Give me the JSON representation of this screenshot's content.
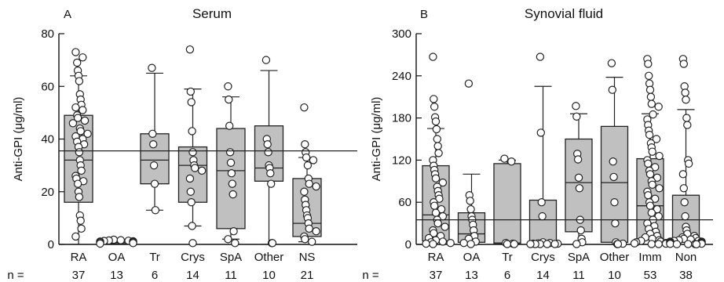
{
  "chart_data": [
    {
      "type": "box",
      "panel": "A",
      "title": "Serum",
      "ylabel": "Anti-GPI (μg/ml)",
      "ylim": [
        0,
        80
      ],
      "yticks": [
        0,
        20,
        40,
        60,
        80
      ],
      "reference_line": 35.5,
      "n_prefix": "n =",
      "groups": [
        {
          "label": "RA",
          "n": "37",
          "box": {
            "whisker_low": 0,
            "q1": 16,
            "median": 32,
            "q3": 49,
            "whisker_high": 64
          },
          "points": [
            73,
            71,
            69,
            66,
            64,
            62,
            57,
            55,
            53,
            52,
            51,
            49,
            48,
            47,
            46,
            44,
            43,
            42,
            41,
            40,
            39,
            38,
            37,
            35,
            32,
            30,
            28,
            26,
            25,
            24,
            23,
            20,
            18,
            11,
            9,
            6,
            3
          ]
        },
        {
          "label": "OA",
          "n": "13",
          "box": {
            "whisker_low": 0,
            "q1": 0.3,
            "median": 0.8,
            "q3": 1.5,
            "whisker_high": 1.8
          },
          "points": [
            1.8,
            1.6,
            1.5,
            1.4,
            1.3,
            1.2,
            1.1,
            1.0,
            0.9,
            0.8,
            0.7,
            0.5,
            0.3
          ]
        },
        {
          "label": "Tr",
          "n": "6",
          "box": {
            "whisker_low": 13,
            "q1": 23,
            "median": 32,
            "q3": 42,
            "whisker_high": 65
          },
          "points": [
            67,
            42,
            38,
            30,
            23,
            13
          ]
        },
        {
          "label": "Crys",
          "n": "14",
          "box": {
            "whisker_low": 7,
            "q1": 16,
            "median": 30,
            "q3": 37,
            "whisker_high": 59
          },
          "points": [
            74,
            58,
            54,
            43,
            35,
            32,
            30,
            29,
            28,
            25,
            20,
            16,
            7,
            0.5
          ]
        },
        {
          "label": "SpA",
          "n": "11",
          "box": {
            "whisker_low": 2,
            "q1": 6,
            "median": 28,
            "q3": 44,
            "whisker_high": 56
          },
          "points": [
            60,
            55,
            45,
            35,
            31,
            27,
            23,
            19,
            5,
            2,
            0.5
          ]
        },
        {
          "label": "Other",
          "n": "10",
          "box": {
            "whisker_low": 0,
            "q1": 24,
            "median": 29,
            "q3": 45,
            "whisker_high": 66
          },
          "points": [
            70,
            40,
            38,
            35,
            30,
            29,
            27,
            23,
            0.5,
            0.5
          ]
        },
        {
          "label": "NS",
          "n": "21",
          "box": {
            "whisker_low": 1,
            "q1": 3,
            "median": 8,
            "q3": 25,
            "whisker_high": 33
          },
          "points": [
            52,
            38,
            35,
            33,
            32,
            30,
            25,
            23,
            22,
            20,
            17,
            15,
            13,
            11,
            10,
            8,
            6,
            5,
            3,
            2,
            1
          ]
        }
      ]
    },
    {
      "type": "box",
      "panel": "B",
      "title": "Synovial fluid",
      "ylabel": "Anti-GPI (μg/ml)",
      "ylim": [
        0,
        300
      ],
      "yticks": [
        0,
        60,
        120,
        180,
        240,
        300
      ],
      "reference_line": 35,
      "n_prefix": "n =",
      "groups": [
        {
          "label": "RA",
          "n": "37",
          "box": {
            "whisker_low": 0,
            "q1": 5,
            "median": 42,
            "q3": 112,
            "whisker_high": 165
          },
          "points": [
            267,
            207,
            196,
            181,
            175,
            164,
            150,
            140,
            130,
            120,
            112,
            106,
            100,
            94,
            88,
            82,
            76,
            70,
            65,
            60,
            55,
            50,
            45,
            40,
            35,
            30,
            25,
            20,
            16,
            12,
            9,
            6,
            4,
            3,
            2,
            1,
            0.5
          ]
        },
        {
          "label": "OA",
          "n": "13",
          "box": {
            "whisker_low": 0,
            "q1": 3,
            "median": 15,
            "q3": 45,
            "whisker_high": 100
          },
          "points": [
            229,
            70,
            62,
            50,
            40,
            35,
            28,
            20,
            12,
            8,
            4,
            2,
            0.5
          ]
        },
        {
          "label": "Tr",
          "n": "6",
          "box": {
            "whisker_low": 0,
            "q1": 0.5,
            "median": 2,
            "q3": 115,
            "whisker_high": 120
          },
          "points": [
            122,
            118,
            2,
            1,
            0.5,
            0.5
          ]
        },
        {
          "label": "Crys",
          "n": "14",
          "box": {
            "whisker_low": 0,
            "q1": 0.5,
            "median": 2,
            "q3": 63,
            "whisker_high": 225
          },
          "points": [
            267,
            159,
            60,
            40,
            3,
            2,
            1.5,
            1,
            1,
            0.5,
            0.5,
            0.5,
            0.5,
            0.5
          ]
        },
        {
          "label": "SpA",
          "n": "11",
          "box": {
            "whisker_low": 0,
            "q1": 18,
            "median": 88,
            "q3": 150,
            "whisker_high": 186
          },
          "points": [
            197,
            182,
            129,
            121,
            95,
            80,
            35,
            20,
            8,
            3,
            0.5
          ]
        },
        {
          "label": "Other",
          "n": "10",
          "box": {
            "whisker_low": 0,
            "q1": 3,
            "median": 88,
            "q3": 168,
            "whisker_high": 238
          },
          "points": [
            258,
            220,
            118,
            96,
            60,
            30,
            3,
            1,
            0.5,
            0.5
          ]
        },
        {
          "label": "Imm",
          "n": "53",
          "box": {
            "whisker_low": 0,
            "q1": 8,
            "median": 55,
            "q3": 122,
            "whisker_high": 186
          },
          "points": [
            264,
            257,
            240,
            229,
            220,
            210,
            200,
            196,
            185,
            178,
            170,
            162,
            156,
            150,
            144,
            138,
            132,
            126,
            120,
            115,
            110,
            105,
            100,
            95,
            90,
            85,
            80,
            75,
            70,
            65,
            60,
            55,
            50,
            45,
            40,
            35,
            30,
            26,
            22,
            18,
            15,
            12,
            10,
            8,
            6,
            5,
            4,
            3,
            2,
            1.5,
            1,
            0.5,
            0.5
          ]
        },
        {
          "label": "Non",
          "n": "38",
          "box": {
            "whisker_low": 0,
            "q1": 3,
            "median": 8,
            "q3": 70,
            "whisker_high": 192
          },
          "points": [
            264,
            257,
            225,
            216,
            206,
            180,
            170,
            120,
            115,
            100,
            80,
            60,
            40,
            25,
            20,
            15,
            12,
            10,
            9,
            8,
            7,
            6,
            5,
            5,
            4,
            4,
            3,
            3,
            2,
            2,
            1.5,
            1,
            1,
            0.8,
            0.5,
            0.5,
            0.3,
            0.2
          ]
        }
      ]
    }
  ]
}
